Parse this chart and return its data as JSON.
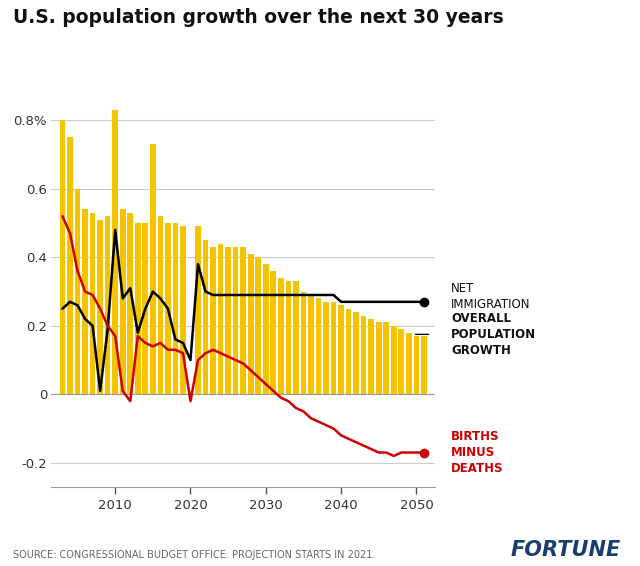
{
  "title": "U.S. population growth over the next 30 years",
  "source_text": "SOURCE: CONGRESSIONAL BUDGET OFFICE. PROJECTION STARTS IN 2021.",
  "fortune_text": "FORTUNE",
  "bar_color": "#F5C400",
  "bar_years": [
    2003,
    2004,
    2005,
    2006,
    2007,
    2008,
    2009,
    2010,
    2011,
    2012,
    2013,
    2014,
    2015,
    2016,
    2017,
    2018,
    2019,
    2020,
    2021,
    2022,
    2023,
    2024,
    2025,
    2026,
    2027,
    2028,
    2029,
    2030,
    2031,
    2032,
    2033,
    2034,
    2035,
    2036,
    2037,
    2038,
    2039,
    2040,
    2041,
    2042,
    2043,
    2044,
    2045,
    2046,
    2047,
    2048,
    2049,
    2050,
    2051
  ],
  "bar_values": [
    0.8,
    0.75,
    0.6,
    0.54,
    0.53,
    0.51,
    0.52,
    0.83,
    0.54,
    0.53,
    0.5,
    0.5,
    0.73,
    0.52,
    0.5,
    0.5,
    0.49,
    0.01,
    0.49,
    0.45,
    0.43,
    0.44,
    0.43,
    0.43,
    0.43,
    0.41,
    0.4,
    0.38,
    0.36,
    0.34,
    0.33,
    0.33,
    0.3,
    0.29,
    0.28,
    0.27,
    0.27,
    0.26,
    0.25,
    0.24,
    0.23,
    0.22,
    0.21,
    0.21,
    0.2,
    0.19,
    0.18,
    0.17,
    0.17
  ],
  "net_immigration_years": [
    2003,
    2004,
    2005,
    2006,
    2007,
    2008,
    2009,
    2010,
    2011,
    2012,
    2013,
    2014,
    2015,
    2016,
    2017,
    2018,
    2019,
    2020,
    2021,
    2022,
    2023,
    2024,
    2025,
    2026,
    2027,
    2028,
    2029,
    2030,
    2031,
    2032,
    2033,
    2034,
    2035,
    2036,
    2037,
    2038,
    2039,
    2040,
    2041,
    2042,
    2043,
    2044,
    2045,
    2046,
    2047,
    2048,
    2049,
    2050,
    2051
  ],
  "net_immigration_values": [
    0.25,
    0.27,
    0.26,
    0.22,
    0.2,
    0.01,
    0.19,
    0.48,
    0.28,
    0.31,
    0.18,
    0.25,
    0.3,
    0.28,
    0.25,
    0.16,
    0.15,
    0.1,
    0.38,
    0.3,
    0.29,
    0.29,
    0.29,
    0.29,
    0.29,
    0.29,
    0.29,
    0.29,
    0.29,
    0.29,
    0.29,
    0.29,
    0.29,
    0.29,
    0.29,
    0.29,
    0.29,
    0.27,
    0.27,
    0.27,
    0.27,
    0.27,
    0.27,
    0.27,
    0.27,
    0.27,
    0.27,
    0.27,
    0.27
  ],
  "births_deaths_years": [
    2003,
    2004,
    2005,
    2006,
    2007,
    2008,
    2009,
    2010,
    2011,
    2012,
    2013,
    2014,
    2015,
    2016,
    2017,
    2018,
    2019,
    2020,
    2021,
    2022,
    2023,
    2024,
    2025,
    2026,
    2027,
    2028,
    2029,
    2030,
    2031,
    2032,
    2033,
    2034,
    2035,
    2036,
    2037,
    2038,
    2039,
    2040,
    2041,
    2042,
    2043,
    2044,
    2045,
    2046,
    2047,
    2048,
    2049,
    2050,
    2051
  ],
  "births_deaths_values": [
    0.52,
    0.47,
    0.36,
    0.3,
    0.29,
    0.25,
    0.2,
    0.17,
    0.01,
    -0.02,
    0.17,
    0.15,
    0.14,
    0.15,
    0.13,
    0.13,
    0.12,
    -0.02,
    0.1,
    0.12,
    0.13,
    0.12,
    0.11,
    0.1,
    0.09,
    0.07,
    0.05,
    0.03,
    0.01,
    -0.01,
    -0.02,
    -0.04,
    -0.05,
    -0.07,
    -0.08,
    -0.09,
    -0.1,
    -0.12,
    -0.13,
    -0.14,
    -0.15,
    -0.16,
    -0.17,
    -0.17,
    -0.18,
    -0.17,
    -0.17,
    -0.17,
    -0.17
  ],
  "ylim": [
    -0.27,
    0.92
  ],
  "yticks": [
    -0.2,
    0.0,
    0.2,
    0.4,
    0.6,
    0.8
  ],
  "ytick_labels": [
    "-0.2",
    "0",
    "0.2",
    "0.4",
    "0.6",
    "0.8%"
  ],
  "xtick_years": [
    2010,
    2020,
    2030,
    2040,
    2050
  ],
  "xlim_left": 2001.5,
  "xlim_right": 2052.5,
  "background_color": "#ffffff",
  "grid_color": "#cccccc",
  "net_immigration_color": "#000000",
  "births_deaths_color": "#cc0000",
  "label_net_immigration": "NET\nIMMIGRATION",
  "label_overall_growth": "OVERALL\nPOPULATION\nGROWTH",
  "label_births_deaths": "BIRTHS\nMINUS\nDEATHS",
  "net_imm_dot_year": 2051,
  "net_imm_dot_val": 0.27,
  "bd_dot_year": 2051,
  "bd_dot_val": -0.17,
  "overall_growth_arrow_val": 0.175
}
